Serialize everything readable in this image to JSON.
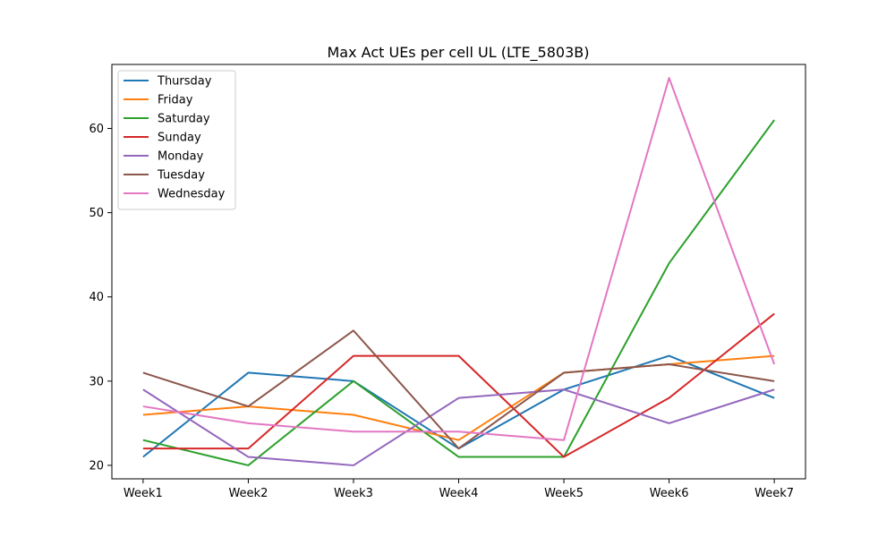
{
  "chart_data": {
    "type": "line",
    "title": "Max Act UEs per cell UL (LTE_5803B)",
    "xlabel": "",
    "ylabel": "",
    "categories": [
      "Week1",
      "Week2",
      "Week3",
      "Week4",
      "Week5",
      "Week6",
      "Week7"
    ],
    "yticks": [
      20,
      30,
      40,
      50,
      60
    ],
    "ylim": [
      18.4,
      67.6
    ],
    "grid": false,
    "legend_position": "top-left",
    "series": [
      {
        "name": "Thursday",
        "color": "#1f77b4",
        "values": [
          21,
          31,
          30,
          22,
          29,
          33,
          28
        ]
      },
      {
        "name": "Friday",
        "color": "#ff7f0e",
        "values": [
          26,
          27,
          26,
          23,
          31,
          32,
          33
        ]
      },
      {
        "name": "Saturday",
        "color": "#2ca02c",
        "values": [
          23,
          20,
          30,
          21,
          21,
          44,
          61
        ]
      },
      {
        "name": "Sunday",
        "color": "#d62728",
        "values": [
          22,
          22,
          33,
          33,
          21,
          28,
          38
        ]
      },
      {
        "name": "Monday",
        "color": "#9467bd",
        "values": [
          29,
          21,
          20,
          28,
          29,
          25,
          29
        ]
      },
      {
        "name": "Tuesday",
        "color": "#8c564b",
        "values": [
          31,
          27,
          36,
          22,
          31,
          32,
          30
        ]
      },
      {
        "name": "Wednesday",
        "color": "#e377c2",
        "values": [
          27,
          25,
          24,
          24,
          23,
          66,
          32
        ]
      }
    ]
  }
}
